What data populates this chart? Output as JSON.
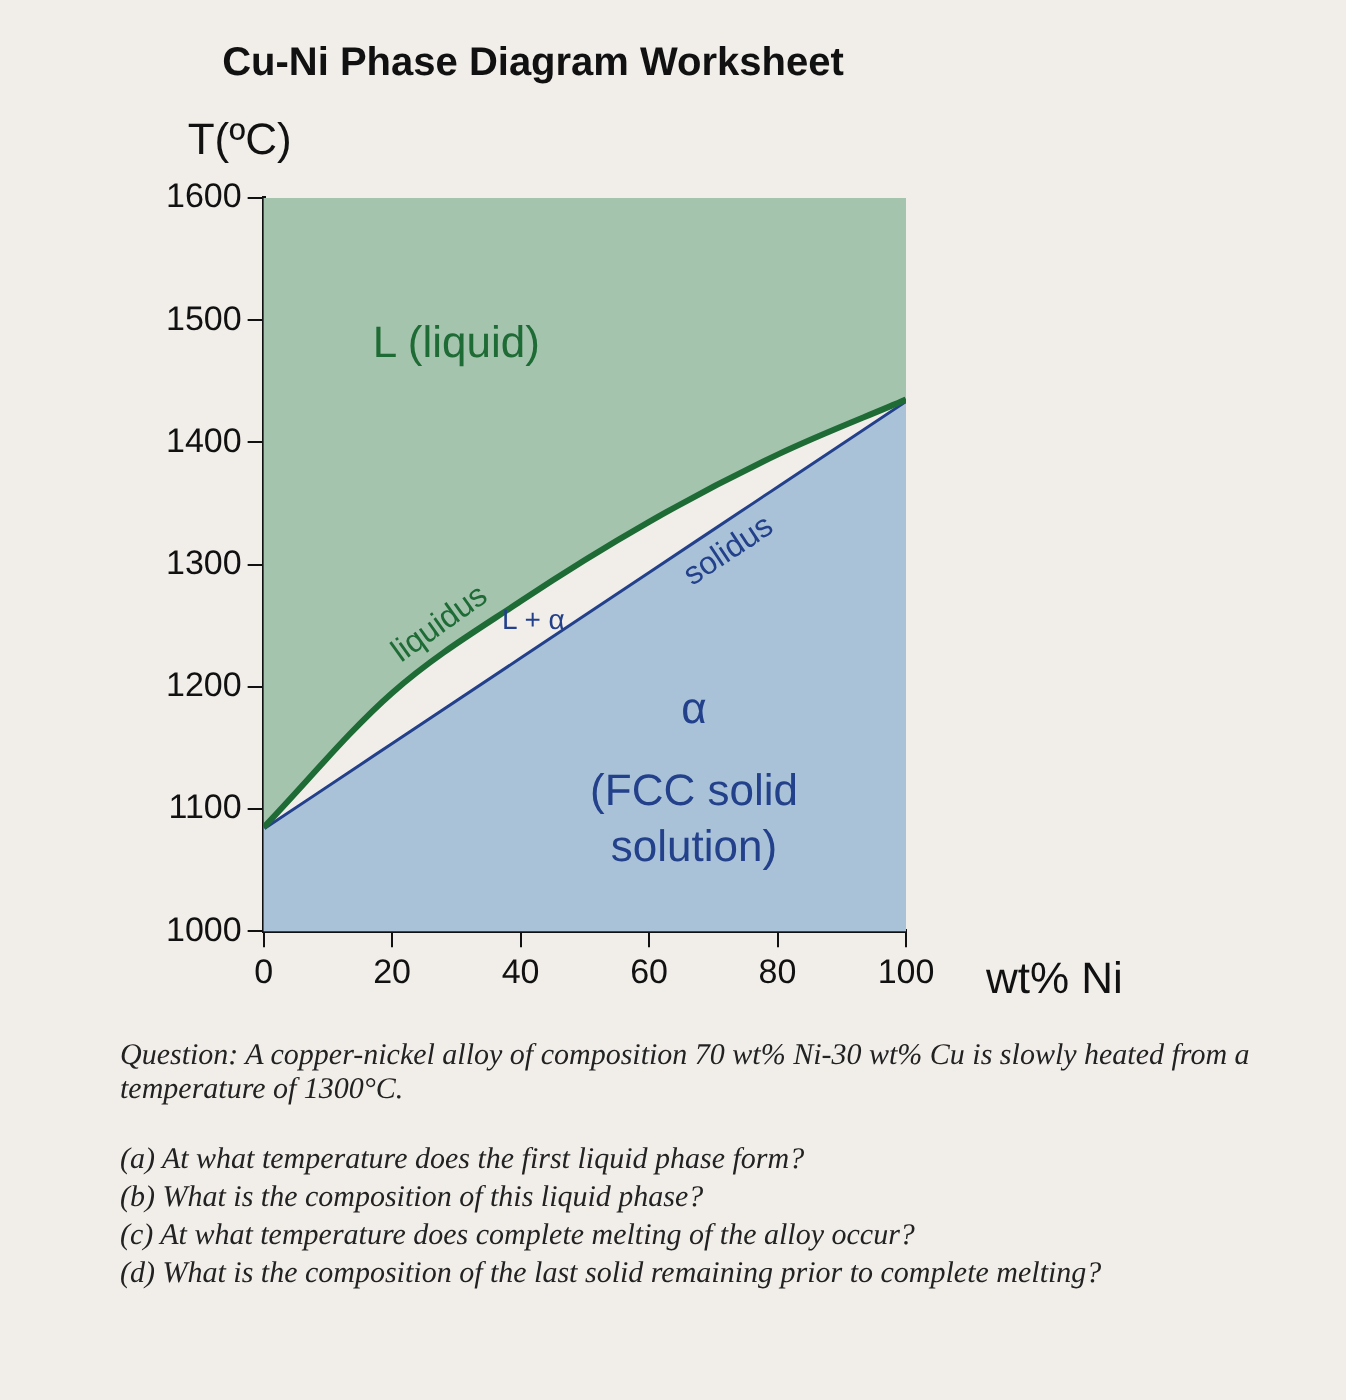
{
  "chart_data": {
    "type": "line",
    "title": "Cu-Ni Phase Diagram Worksheet",
    "ylabel": "T(ºC)",
    "xlabel": "wt% Ni",
    "x": [
      0,
      20,
      40,
      60,
      80,
      100
    ],
    "series": [
      {
        "name": "liquidus",
        "type": "area",
        "color": "#1e6b35",
        "values": [
          1085,
          1195,
          1270,
          1335,
          1390,
          1435
        ]
      },
      {
        "name": "solidus",
        "type": "area",
        "color": "#a9c2d8",
        "values": [
          1085,
          1155,
          1225,
          1295,
          1365,
          1435
        ]
      }
    ],
    "xlim": [
      0,
      100
    ],
    "xticks": [
      0,
      20,
      40,
      60,
      80,
      100
    ],
    "ylim": [
      1000,
      1600
    ],
    "yticks": [
      1000,
      1100,
      1200,
      1300,
      1400,
      1500,
      1600
    ],
    "grid": false,
    "legend": false,
    "marker": "none",
    "annotations": [
      "L (liquid)",
      "L + α",
      "α",
      "(FCC solid solution)",
      "Question: A copper-nickel alloy of composition 70 wt% Ni-30 wt% Cu is slowly heated from a temperature of 1300°C.",
      "(a) At what temperature does the first liquid phase form?",
      "(b) What is the composition of this liquid phase?",
      "(c) At what temperature does complete melting of the alloy occur?",
      "(d) What is the composition of the last solid remaining prior to complete melting?"
    ]
  }
}
